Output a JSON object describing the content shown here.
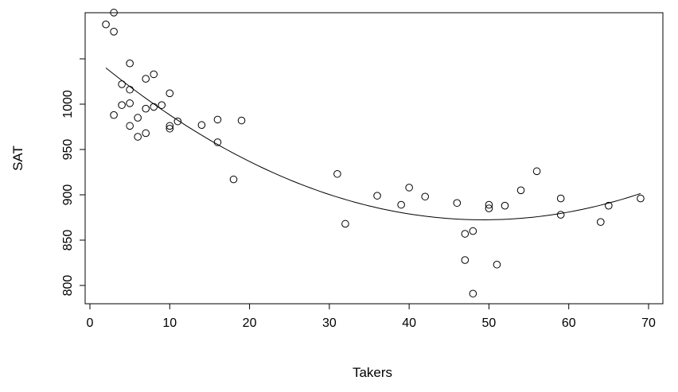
{
  "chart_data": {
    "type": "scatter",
    "xlabel": "Takers",
    "ylabel": "SAT",
    "xlim": [
      0,
      72
    ],
    "ylim": [
      775,
      1100
    ],
    "xticks": [
      0,
      10,
      20,
      30,
      40,
      50,
      60,
      70
    ],
    "yticks": [
      800,
      850,
      900,
      950,
      1000
    ],
    "yticks_unlabeled": [
      1050
    ],
    "points": [
      {
        "x": 2,
        "y": 1088
      },
      {
        "x": 3,
        "y": 1101
      },
      {
        "x": 3,
        "y": 1080
      },
      {
        "x": 5,
        "y": 1045
      },
      {
        "x": 8,
        "y": 1033
      },
      {
        "x": 7,
        "y": 1028
      },
      {
        "x": 4,
        "y": 1022
      },
      {
        "x": 5,
        "y": 1016
      },
      {
        "x": 10,
        "y": 1012
      },
      {
        "x": 4,
        "y": 999
      },
      {
        "x": 5,
        "y": 1001
      },
      {
        "x": 9,
        "y": 999
      },
      {
        "x": 8,
        "y": 997
      },
      {
        "x": 7,
        "y": 995
      },
      {
        "x": 3,
        "y": 988
      },
      {
        "x": 6,
        "y": 985
      },
      {
        "x": 11,
        "y": 981
      },
      {
        "x": 16,
        "y": 983
      },
      {
        "x": 19,
        "y": 982
      },
      {
        "x": 14,
        "y": 977
      },
      {
        "x": 5,
        "y": 976
      },
      {
        "x": 10,
        "y": 976
      },
      {
        "x": 10,
        "y": 973
      },
      {
        "x": 7,
        "y": 968
      },
      {
        "x": 6,
        "y": 964
      },
      {
        "x": 16,
        "y": 958
      },
      {
        "x": 18,
        "y": 917
      },
      {
        "x": 31,
        "y": 923
      },
      {
        "x": 32,
        "y": 868
      },
      {
        "x": 36,
        "y": 899
      },
      {
        "x": 39,
        "y": 889
      },
      {
        "x": 40,
        "y": 908
      },
      {
        "x": 42,
        "y": 898
      },
      {
        "x": 46,
        "y": 891
      },
      {
        "x": 47,
        "y": 857
      },
      {
        "x": 47,
        "y": 828
      },
      {
        "x": 48,
        "y": 860
      },
      {
        "x": 48,
        "y": 791
      },
      {
        "x": 50,
        "y": 889
      },
      {
        "x": 50,
        "y": 885
      },
      {
        "x": 51,
        "y": 823
      },
      {
        "x": 52,
        "y": 888
      },
      {
        "x": 54,
        "y": 905
      },
      {
        "x": 56,
        "y": 926
      },
      {
        "x": 59,
        "y": 896
      },
      {
        "x": 59,
        "y": 878
      },
      {
        "x": 64,
        "y": 870
      },
      {
        "x": 65,
        "y": 888
      },
      {
        "x": 69,
        "y": 896
      }
    ],
    "fit_line": {
      "type": "quadratic",
      "x_range": [
        2,
        69
      ],
      "coefficients": {
        "a": 0.0749,
        "b": -7.386,
        "c": 1054.5
      }
    }
  }
}
